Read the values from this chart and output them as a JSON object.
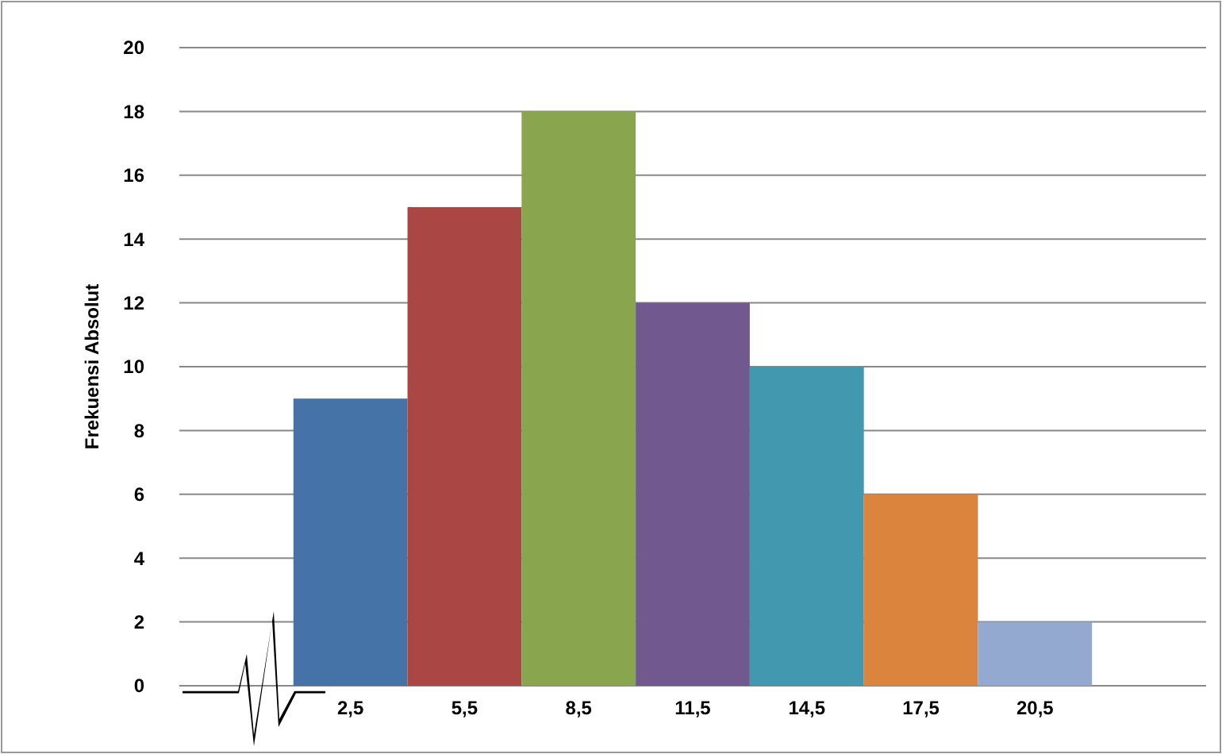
{
  "chart_data": {
    "type": "bar",
    "ylabel": "Frekuensi Absolut",
    "categories": [
      null,
      "2,5",
      "5,5",
      "8,5",
      "11,5",
      "14,5",
      "17,5",
      "20,5",
      null
    ],
    "values": [
      null,
      9,
      15,
      18,
      12,
      10,
      6,
      2,
      null
    ],
    "colors": [
      null,
      "#4572a7",
      "#aa4643",
      "#89a54e",
      "#71588f",
      "#4198af",
      "#db843d",
      "#93a9cf",
      null
    ],
    "ylim": [
      0,
      20
    ],
    "yticks": [
      0,
      2,
      4,
      6,
      8,
      10,
      12,
      14,
      16,
      18,
      20
    ],
    "grid": "y"
  }
}
